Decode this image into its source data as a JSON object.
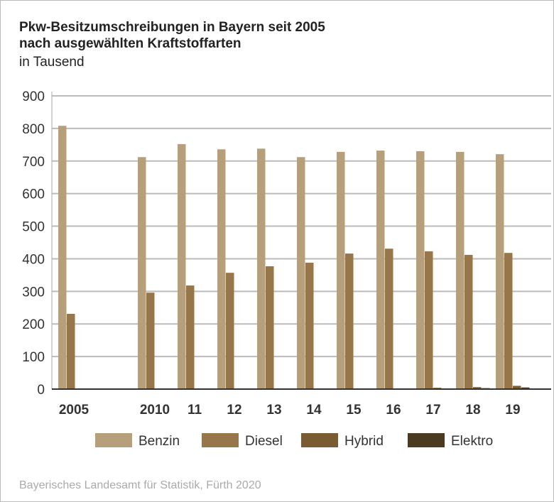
{
  "chart_data": {
    "type": "bar",
    "title": "Pkw-Besitzumschreibungen in Bayern seit 2005",
    "subtitle": "nach ausgewählten Kraftstoffarten",
    "unit": "in Tausend",
    "categories": [
      "2005",
      "2010",
      "11",
      "12",
      "13",
      "14",
      "15",
      "16",
      "17",
      "18",
      "19"
    ],
    "series": [
      {
        "name": "Benzin",
        "color": "#b6a07b",
        "values": [
          808,
          712,
          752,
          736,
          738,
          712,
          728,
          732,
          730,
          728,
          721
        ]
      },
      {
        "name": "Diesel",
        "color": "#97764c",
        "values": [
          231,
          296,
          318,
          357,
          377,
          388,
          416,
          431,
          423,
          412,
          418
        ]
      },
      {
        "name": "Hybrid",
        "color": "#7a5c33",
        "values": [
          0,
          0,
          0,
          1,
          1,
          1,
          1,
          2,
          4,
          6,
          10
        ]
      },
      {
        "name": "Elektro",
        "color": "#4a3a20",
        "values": [
          0,
          0,
          0,
          0,
          0,
          0,
          1,
          1,
          2,
          3,
          5
        ]
      }
    ],
    "ylim": [
      0,
      900
    ],
    "yticks": [
      "0",
      "100",
      "200",
      "300",
      "400",
      "500",
      "600",
      "700",
      "800",
      "900"
    ],
    "grid": true,
    "legend": "bottom"
  },
  "source": "Bayerisches Landesamt für Statistik, Fürth 2020"
}
